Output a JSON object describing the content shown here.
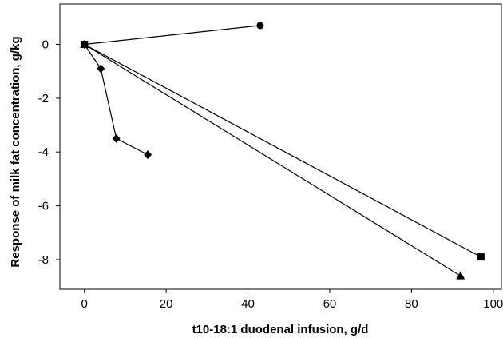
{
  "chart_data": {
    "type": "scatter",
    "title": "",
    "xlabel": "t10-18:1 duodenal  infusion, g/d",
    "ylabel": "Response of milk fat concentration, g/kg",
    "xlim": [
      -6,
      102
    ],
    "ylim": [
      -9.1,
      1.5
    ],
    "xticks": [
      0,
      20,
      40,
      60,
      80,
      100
    ],
    "yticks": [
      0,
      -2,
      -4,
      -6,
      -8
    ],
    "grid": false,
    "legend": "none",
    "series": [
      {
        "marker": "diamond",
        "x": [
          0,
          4,
          7.8,
          15.5
        ],
        "y": [
          0,
          -0.9,
          -3.5,
          -4.1
        ]
      },
      {
        "marker": "circle",
        "x": [
          0,
          43
        ],
        "y": [
          0,
          0.7
        ]
      },
      {
        "marker": "square",
        "x": [
          0,
          97
        ],
        "y": [
          0,
          -7.9
        ]
      },
      {
        "marker": "triangle",
        "x": [
          0,
          92
        ],
        "y": [
          0,
          -8.6
        ]
      }
    ],
    "colors": {
      "line": "#000000",
      "marker": "#000000"
    }
  }
}
